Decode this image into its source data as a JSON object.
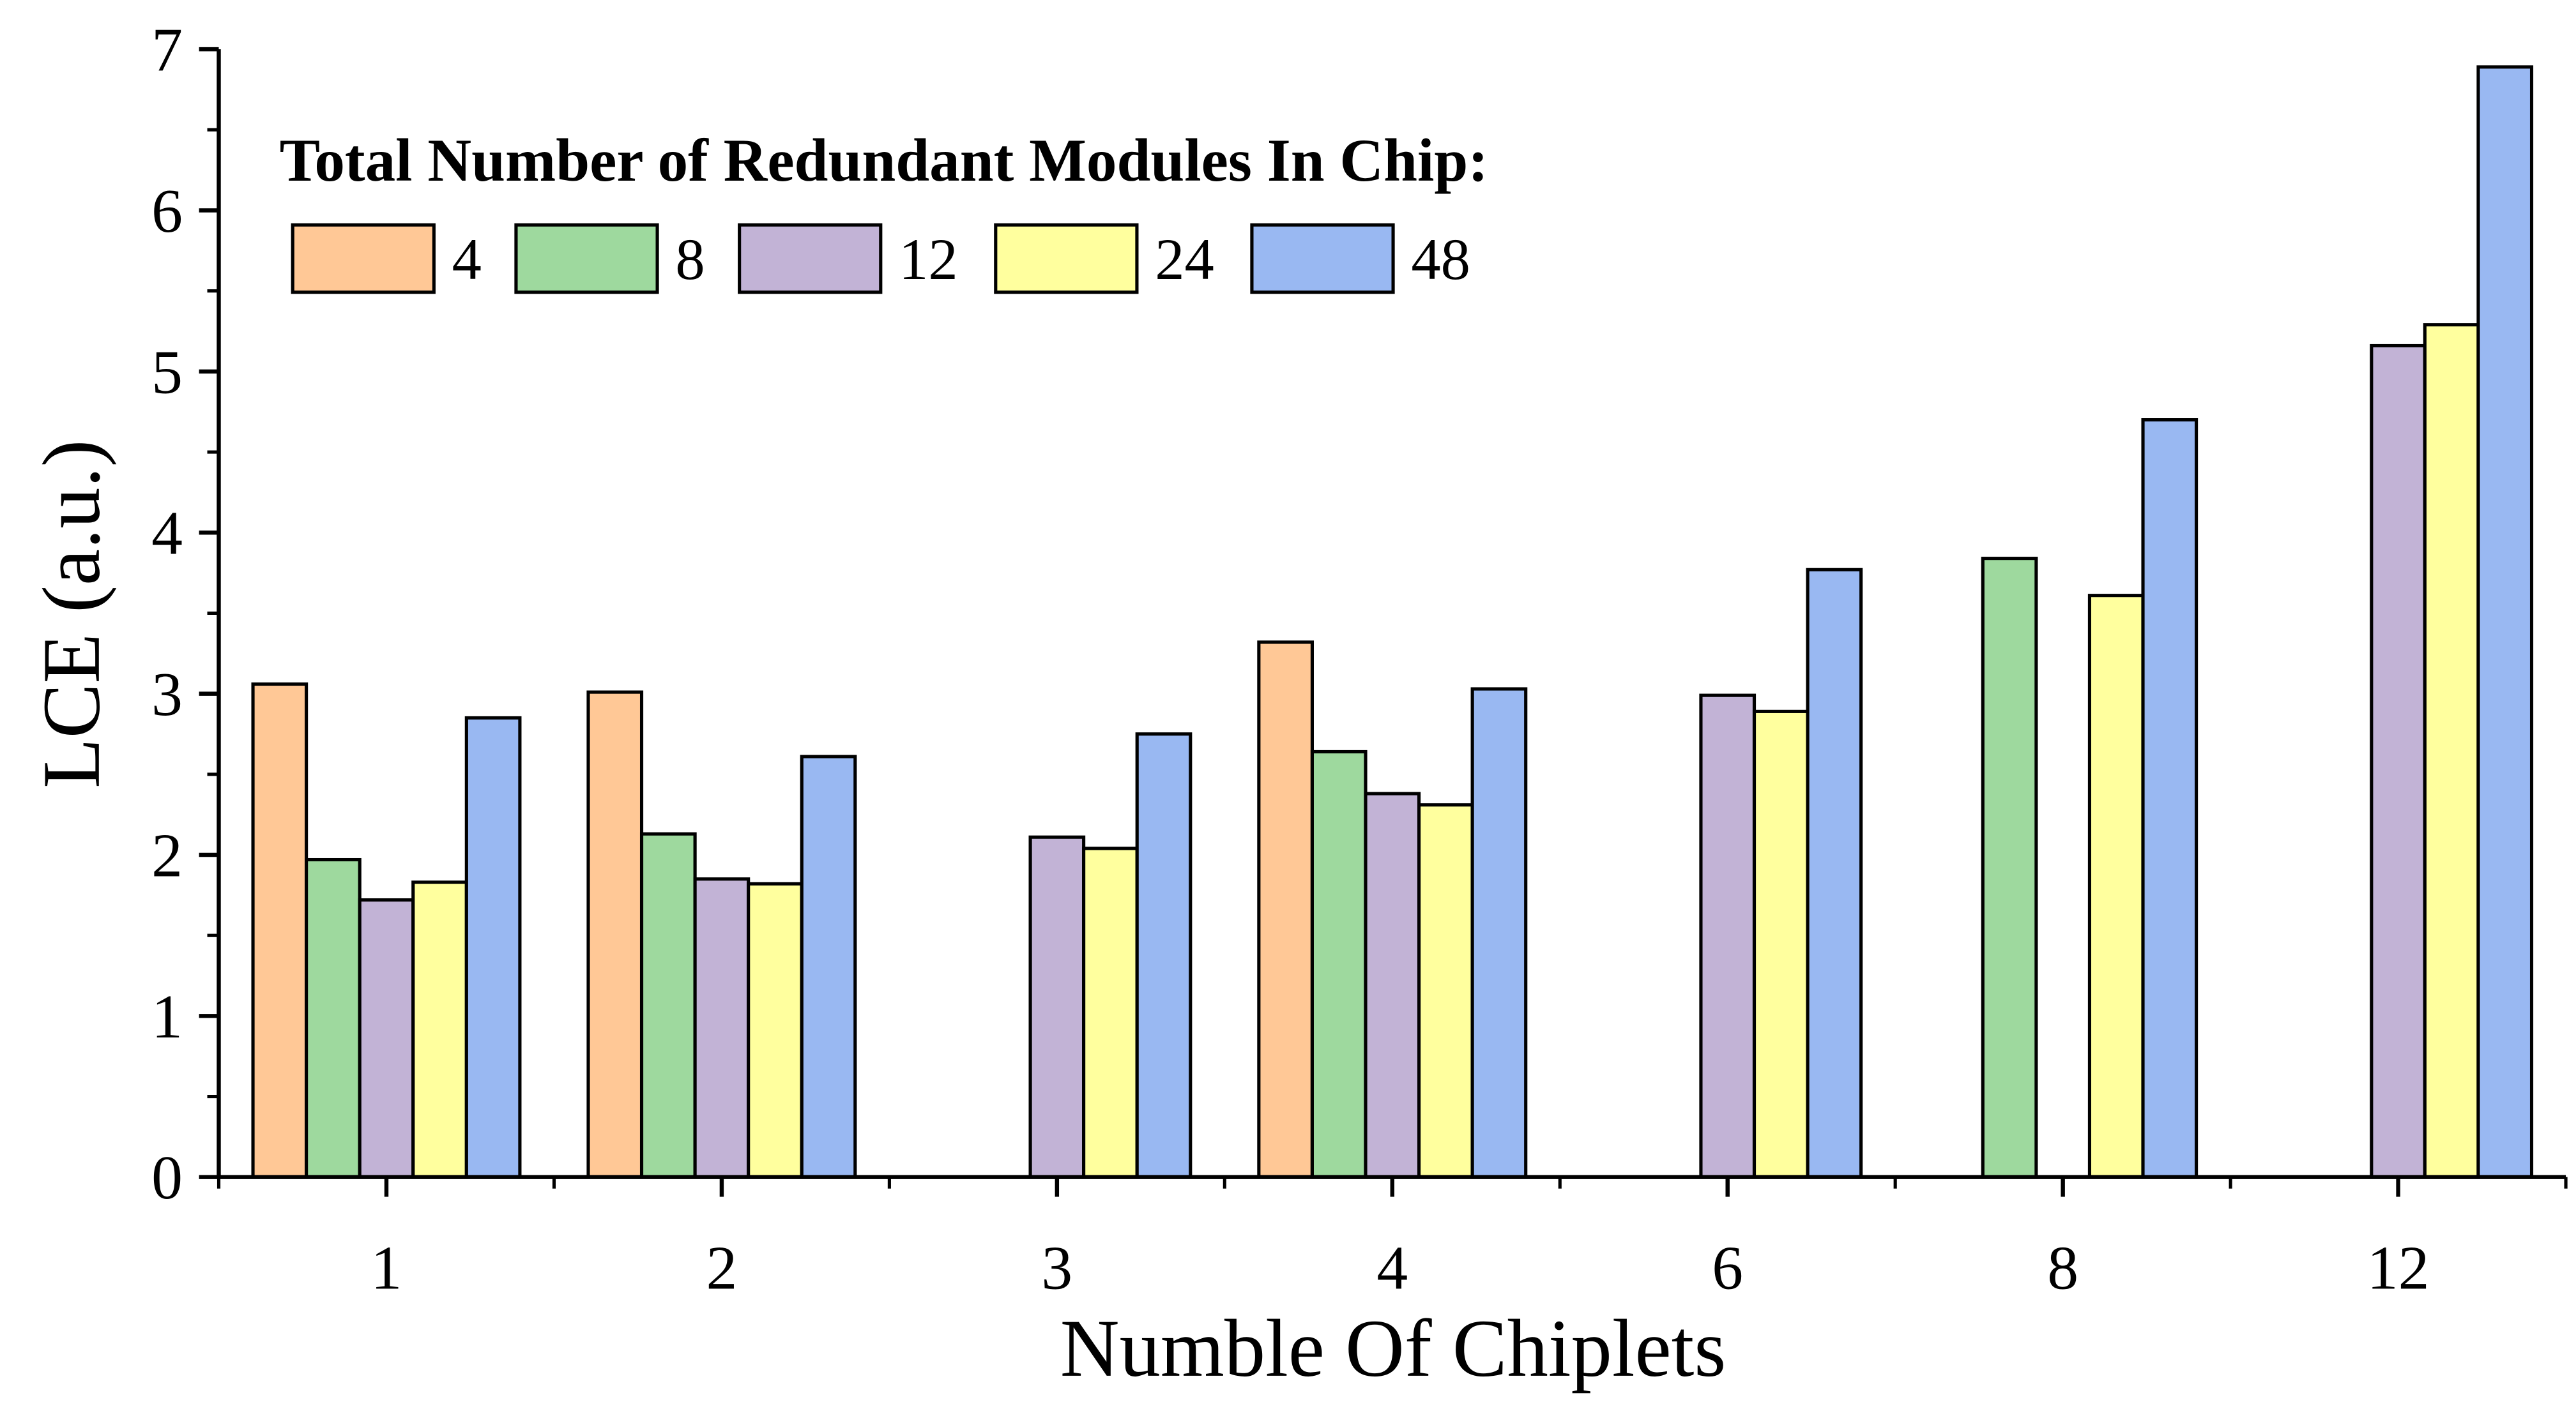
{
  "chart_data": {
    "type": "bar",
    "title": "",
    "xlabel": "Numble Of Chiplets",
    "ylabel": "LCE (a.u.)",
    "ylim": [
      0,
      7
    ],
    "yticks": [
      "0",
      "1",
      "2",
      "3",
      "4",
      "5",
      "6",
      "7"
    ],
    "categories": [
      "1",
      "2",
      "3",
      "4",
      "6",
      "8",
      "12"
    ],
    "legend_title": "Total Number of Redundant Modules In Chip:",
    "legend_placement": "top-left",
    "grid": false,
    "series": [
      {
        "name": "4",
        "color": "#FFC896",
        "values": [
          3.06,
          3.01,
          null,
          3.32,
          null,
          null,
          null
        ]
      },
      {
        "name": "8",
        "color": "#9ED99E",
        "values": [
          1.97,
          2.13,
          null,
          2.64,
          null,
          3.84,
          null
        ]
      },
      {
        "name": "12",
        "color": "#C2B3D6",
        "values": [
          1.72,
          1.85,
          2.11,
          2.38,
          2.99,
          null,
          5.16
        ]
      },
      {
        "name": "24",
        "color": "#FFFF9E",
        "values": [
          1.83,
          1.82,
          2.04,
          2.31,
          2.89,
          3.61,
          5.29
        ]
      },
      {
        "name": "48",
        "color": "#99B8F2",
        "values": [
          2.85,
          2.61,
          2.75,
          3.03,
          3.77,
          4.7,
          6.89
        ]
      }
    ]
  }
}
